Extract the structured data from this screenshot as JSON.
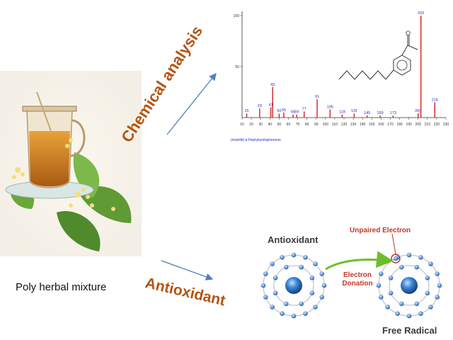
{
  "labels": {
    "mixture": "Poly herbal mixture",
    "chemical_analysis": "Chemical analysis",
    "antioxidant_arrow": "Antioxidant",
    "antioxidant_atom": "Antioxidant",
    "unpaired_electron": "Unpaired Electron",
    "electron_donation_1": "Electron",
    "electron_donation_2": "Donation",
    "free_radical": "Free Radical"
  },
  "colors": {
    "label_brown": "#b5530f",
    "arrow_blue": "#4f81bd",
    "peak_red": "#d22020",
    "peak_label_blue": "#2a2ac8",
    "electron_blue": "#2a73c9",
    "donation_green": "#6cbf2a",
    "highlight_red": "#c0392b"
  },
  "chart_data": {
    "type": "bar",
    "title": "",
    "caption": "(mainlib) p-Heptylacetophenone",
    "ylim": [
      0,
      100
    ],
    "yticks": [
      "50",
      "100"
    ],
    "xlim": [
      10,
      230
    ],
    "xticks": [
      "10",
      "20",
      "30",
      "40",
      "50",
      "60",
      "70",
      "80",
      "90",
      "100",
      "110",
      "120",
      "130",
      "140",
      "150",
      "160",
      "170",
      "180",
      "190",
      "200",
      "210",
      "220",
      "230"
    ],
    "peaks": [
      {
        "mz": 15,
        "intensity": 4,
        "label": "15"
      },
      {
        "mz": 29,
        "intensity": 9,
        "label": "29"
      },
      {
        "mz": 41,
        "intensity": 10,
        "label": "41"
      },
      {
        "mz": 43,
        "intensity": 30,
        "label": "43"
      },
      {
        "mz": 50,
        "intensity": 4,
        "label": "50"
      },
      {
        "mz": 55,
        "intensity": 5,
        "label": "55"
      },
      {
        "mz": 65,
        "intensity": 3,
        "label": "65"
      },
      {
        "mz": 69,
        "intensity": 3,
        "label": "69"
      },
      {
        "mz": 77,
        "intensity": 6,
        "label": "77"
      },
      {
        "mz": 91,
        "intensity": 18,
        "label": "91"
      },
      {
        "mz": 105,
        "intensity": 8,
        "label": "105"
      },
      {
        "mz": 118,
        "intensity": 3,
        "label": "118"
      },
      {
        "mz": 131,
        "intensity": 4,
        "label": "131"
      },
      {
        "mz": 145,
        "intensity": 2,
        "label": "145"
      },
      {
        "mz": 159,
        "intensity": 2,
        "label": "159"
      },
      {
        "mz": 173,
        "intensity": 2,
        "label": "173"
      },
      {
        "mz": 200,
        "intensity": 4,
        "label": "200"
      },
      {
        "mz": 203,
        "intensity": 100,
        "label": "203"
      },
      {
        "mz": 218,
        "intensity": 15,
        "label": "218"
      }
    ]
  }
}
